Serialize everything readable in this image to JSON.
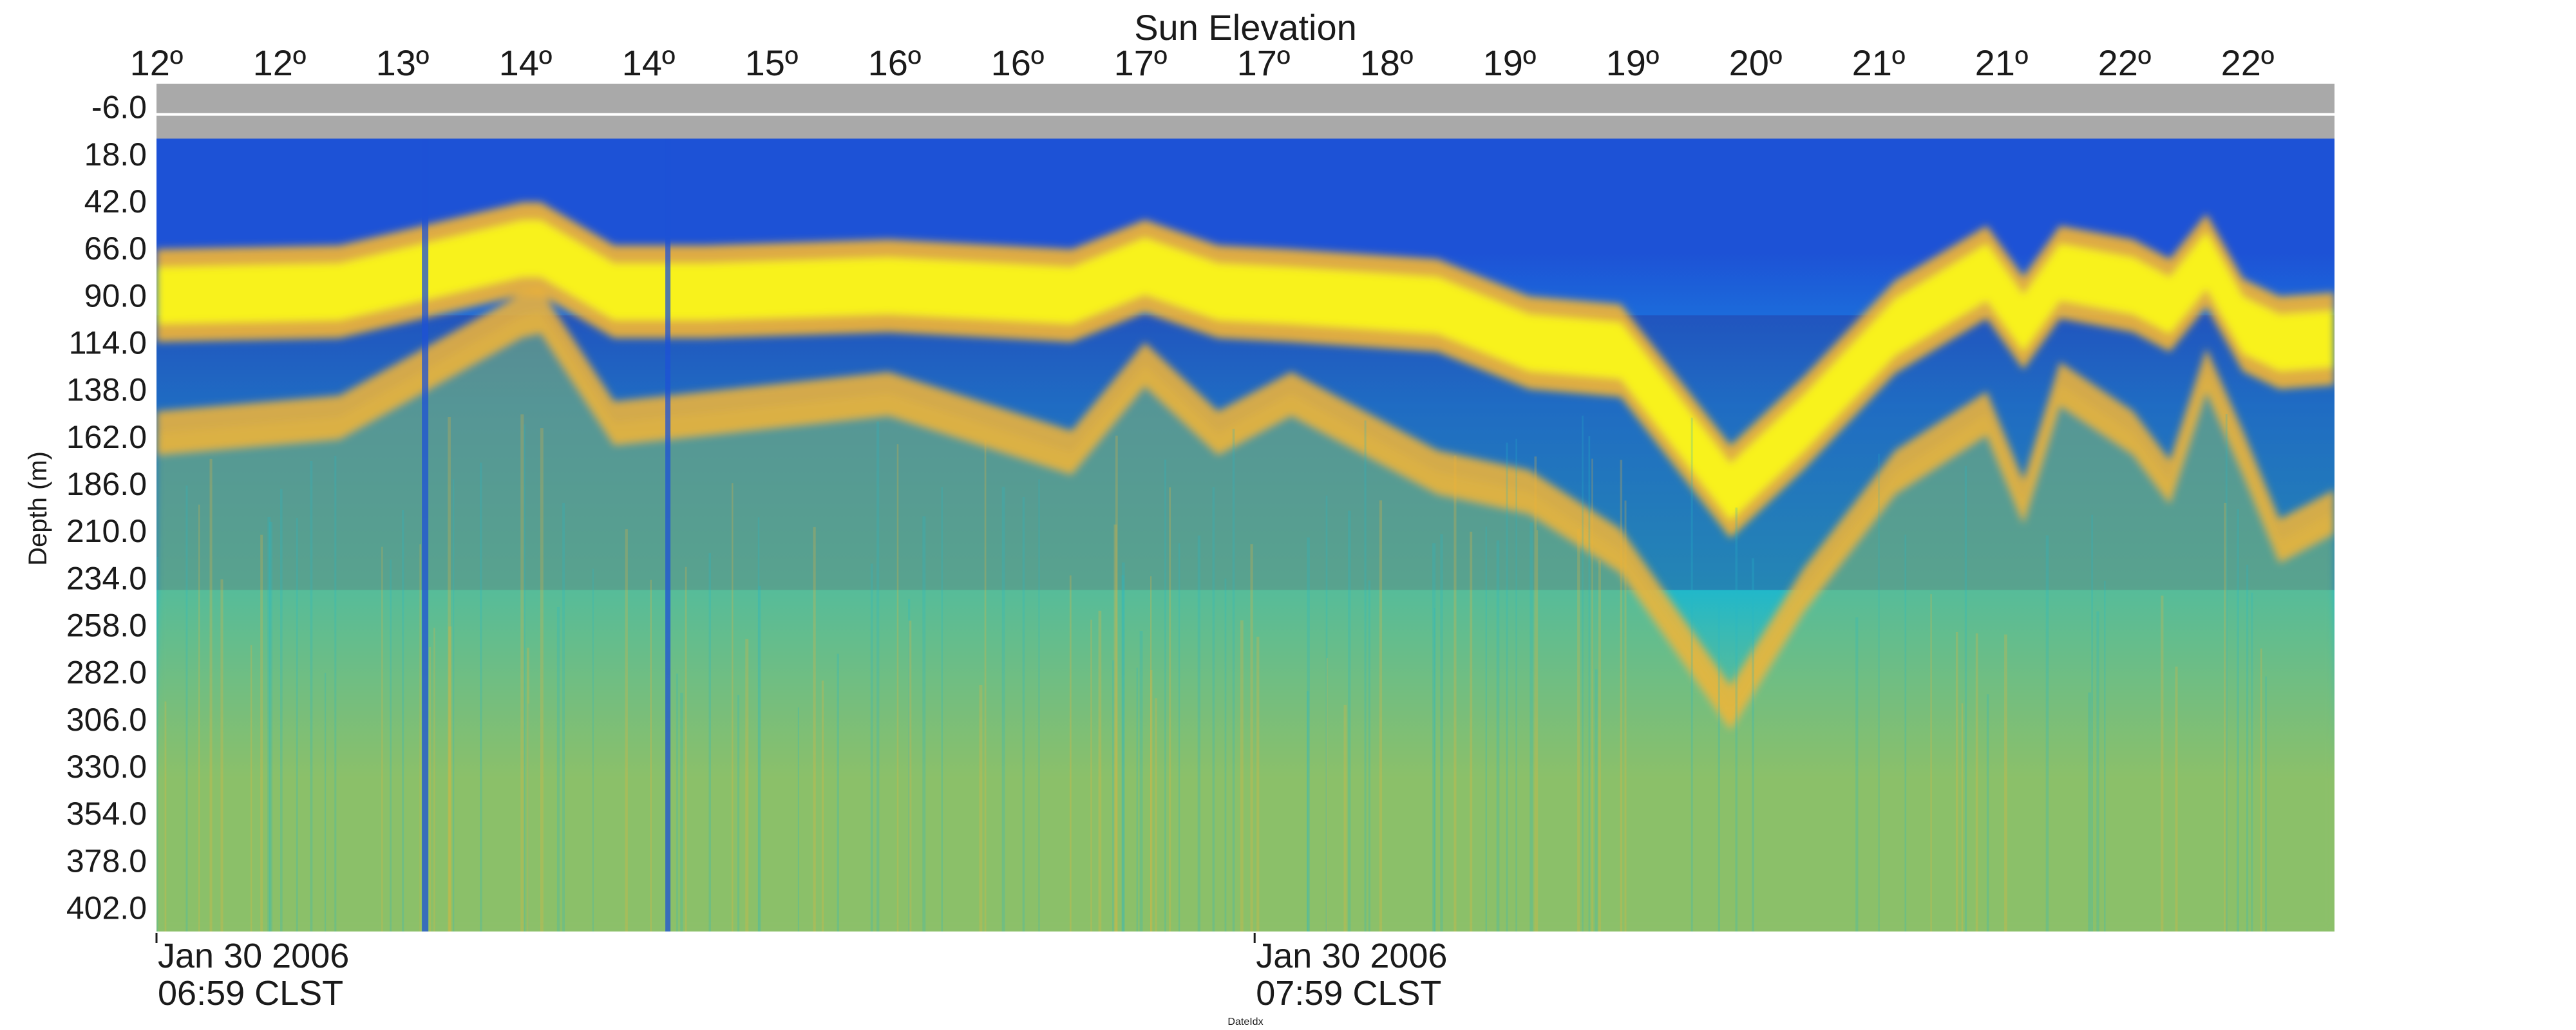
{
  "chart_data": {
    "type": "heatmap",
    "title": "Sun Elevation",
    "xlabel": "DateIdx",
    "ylabel": "Depth (m)",
    "top_axis": {
      "label": "Sun Elevation",
      "tick_labels": [
        "12º",
        "12º",
        "13º",
        "14º",
        "14º",
        "15º",
        "16º",
        "16º",
        "17º",
        "17º",
        "18º",
        "19º",
        "19º",
        "20º",
        "21º",
        "21º",
        "22º",
        "22º"
      ]
    },
    "x_range_minutes": [
      0,
      119
    ],
    "bottom_axis": {
      "ticks": [
        {
          "minute": 0,
          "date": "Jan 30 2006",
          "time": "06:59 CLST"
        },
        {
          "minute": 60,
          "date": "Jan 30 2006",
          "time": "07:59 CLST"
        }
      ]
    },
    "y_axis": {
      "tick_labels": [
        "-6.0",
        "18.0",
        "42.0",
        "66.0",
        "90.0",
        "114.0",
        "138.0",
        "162.0",
        "186.0",
        "210.0",
        "234.0",
        "258.0",
        "282.0",
        "306.0",
        "330.0",
        "354.0",
        "378.0",
        "402.0"
      ],
      "ylim": [
        -18,
        414
      ],
      "inverted": true
    },
    "colormap": [
      "#2b2c8c",
      "#1d52d6",
      "#1a8fe0",
      "#22b8c9",
      "#8cc06a",
      "#f3b535",
      "#f8f21b"
    ],
    "no_data_color": "#a9a9a9",
    "layers": [
      {
        "name": "",
        "x": [
          0,
          10,
          20,
          21,
          25,
          30,
          40,
          50,
          54,
          58,
          62,
          70,
          75,
          80,
          86,
          90,
          95,
          100,
          102,
          104,
          108,
          110,
          112,
          114,
          116,
          119
        ],
        "depth": [
          90,
          88,
          66,
          66,
          88,
          88,
          85,
          90,
          75,
          88,
          90,
          95,
          114,
          118,
          190,
          155,
          106,
          78,
          104,
          78,
          85,
          95,
          72,
          105,
          114,
          112
        ]
      },
      {
        "name": "",
        "x": [
          0,
          10,
          20,
          21,
          25,
          30,
          40,
          50,
          54,
          58,
          62,
          70,
          75,
          80,
          86,
          90,
          95,
          100,
          102,
          104,
          108,
          110,
          112,
          114,
          116,
          119
        ],
        "depth": [
          160,
          152,
          100,
          98,
          155,
          150,
          140,
          170,
          125,
          160,
          140,
          180,
          190,
          220,
          300,
          240,
          180,
          150,
          195,
          135,
          160,
          185,
          128,
          170,
          215,
          200
        ]
      }
    ]
  }
}
